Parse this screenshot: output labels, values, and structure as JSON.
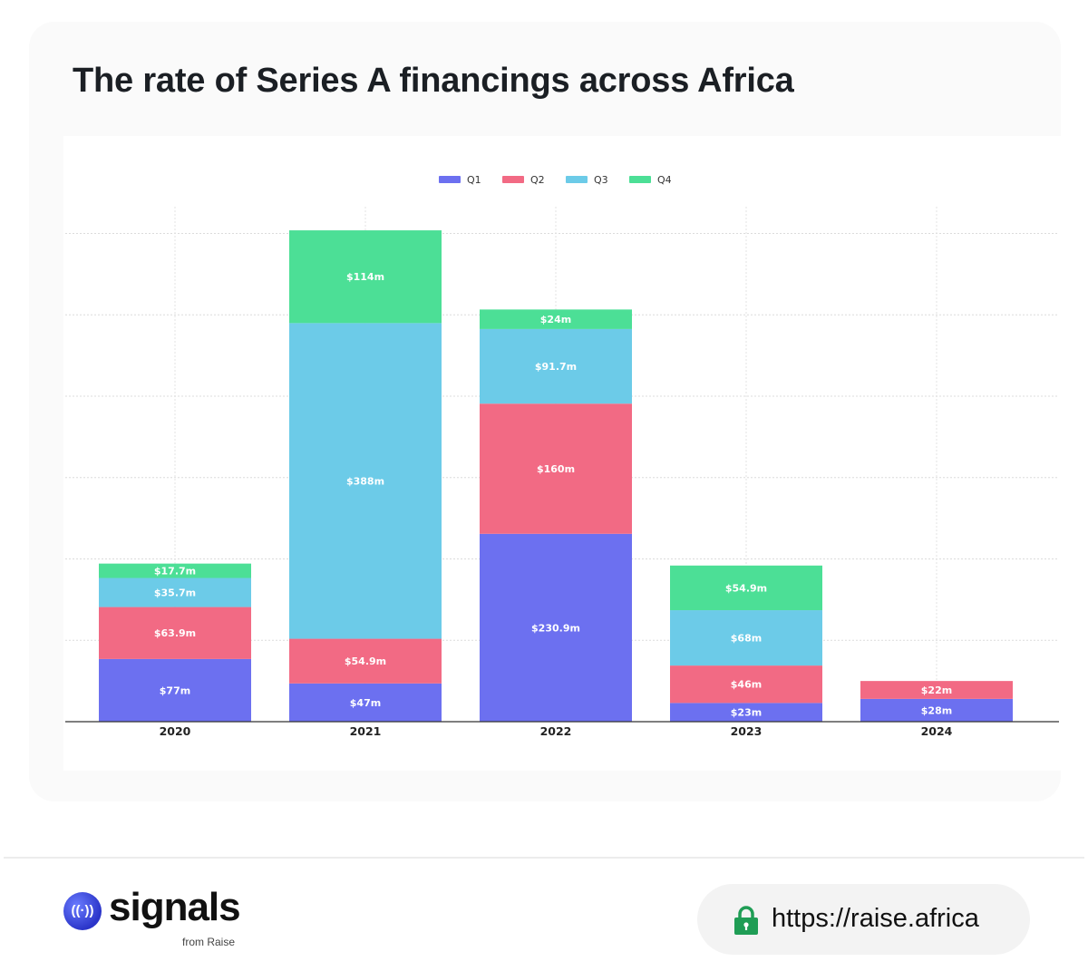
{
  "page": {
    "title": "The rate of Series A financings across Africa"
  },
  "chart_data": {
    "type": "bar",
    "stacked": true,
    "categories": [
      "2020",
      "2021",
      "2022",
      "2023",
      "2024"
    ],
    "series": [
      {
        "name": "Q1",
        "color": "#6c70f0",
        "values": [
          77,
          47,
          230.9,
          23,
          28
        ],
        "labels": [
          "$77m",
          "$47m",
          "$230.9m",
          "$23m",
          "$28m"
        ]
      },
      {
        "name": "Q2",
        "color": "#f26a84",
        "values": [
          63.9,
          54.9,
          160,
          46,
          22
        ],
        "labels": [
          "$63.9m",
          "$54.9m",
          "$160m",
          "$46m",
          "$22m"
        ]
      },
      {
        "name": "Q3",
        "color": "#6ccbe8",
        "values": [
          35.7,
          388,
          91.7,
          68,
          0
        ],
        "labels": [
          "$35.7m",
          "$388m",
          "$91.7m",
          "$68m",
          ""
        ]
      },
      {
        "name": "Q4",
        "color": "#4cdf96",
        "values": [
          17.7,
          114,
          24,
          54.9,
          0
        ],
        "labels": [
          "$17.7m",
          "$114m",
          "$24m",
          "$54.9m",
          ""
        ]
      }
    ],
    "ylim": [
      0,
      600
    ],
    "yticks": [
      100,
      200,
      300,
      400,
      500,
      600
    ],
    "grid": true,
    "legend": "top-center",
    "y_tick_labels_visible": false
  },
  "footer": {
    "brand_name": "signals",
    "brand_sub": "from Raise",
    "brand_icon": "broadcast-icon",
    "url": "https://raise.africa",
    "url_icon": "lock-icon",
    "lock_color": "#1f9d55"
  }
}
